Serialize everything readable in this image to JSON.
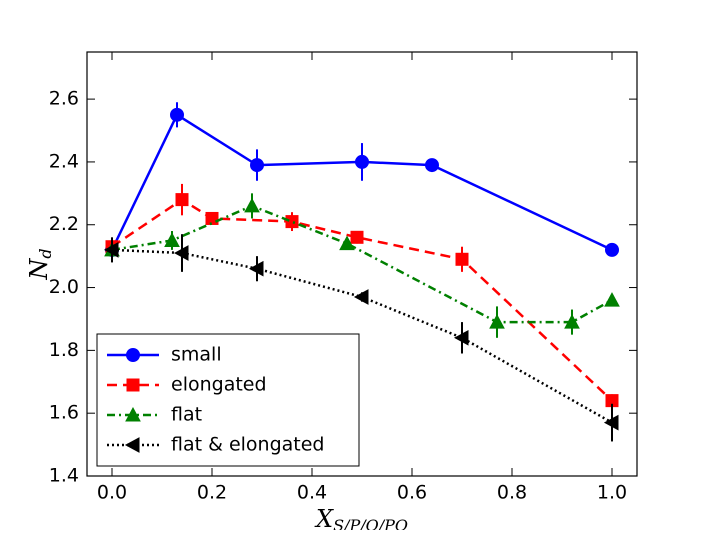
{
  "chart_data": {
    "type": "line",
    "xlabel": {
      "main": "X",
      "sub": "S/P/O/PO"
    },
    "ylabel": {
      "main": "N",
      "sub": "d"
    },
    "xlim": [
      -0.05,
      1.05
    ],
    "ylim": [
      1.4,
      2.75
    ],
    "xticks": [
      {
        "value": 0,
        "label": "0.0"
      },
      {
        "value": 0.2,
        "label": "0.2"
      },
      {
        "value": 0.4,
        "label": "0.4"
      },
      {
        "value": 0.6,
        "label": "0.6"
      },
      {
        "value": 0.8,
        "label": "0.8"
      },
      {
        "value": 1,
        "label": "1.0"
      }
    ],
    "yticks": [
      1.4,
      1.6,
      1.8,
      {
        "value": 2,
        "label": "2.0"
      },
      2.2,
      2.4,
      2.6
    ],
    "legend": "lower left",
    "series": [
      {
        "name": "small",
        "color": "#0000ff",
        "linestyle": "solid",
        "marker": "circle",
        "x": [
          0,
          0.13,
          0.29,
          0.5,
          0.64,
          1.0
        ],
        "values": [
          2.12,
          2.55,
          2.39,
          2.4,
          2.39,
          2.12
        ],
        "errors": [
          0.02,
          0.04,
          0.05,
          0.06,
          0.015,
          0.01
        ]
      },
      {
        "name": "elongated",
        "color": "#ff0000",
        "linestyle": "dashed",
        "marker": "square",
        "x": [
          0,
          0.14,
          0.2,
          0.36,
          0.49,
          0.7,
          1.0
        ],
        "values": [
          2.13,
          2.28,
          2.22,
          2.21,
          2.16,
          2.09,
          1.64
        ],
        "errors": [
          0.02,
          0.05,
          0.01,
          0.03,
          0.02,
          0.04,
          0.02
        ]
      },
      {
        "name": "flat",
        "color": "#008000",
        "linestyle": "dashdot",
        "marker": "triangle-up",
        "x": [
          0,
          0.12,
          0.28,
          0.47,
          0.77,
          0.92,
          1.0
        ],
        "values": [
          2.12,
          2.15,
          2.26,
          2.14,
          1.89,
          1.89,
          1.96
        ],
        "errors": [
          0.02,
          0.03,
          0.04,
          0.02,
          0.05,
          0.04,
          0.01
        ]
      },
      {
        "name": "flat & elongated",
        "color": "#000000",
        "linestyle": "dotted",
        "marker": "triangle-left",
        "x": [
          0,
          0.14,
          0.29,
          0.5,
          0.7,
          1.0
        ],
        "values": [
          2.12,
          2.11,
          2.06,
          1.97,
          1.84,
          1.57
        ],
        "errors": [
          0.04,
          0.06,
          0.04,
          0.015,
          0.05,
          0.06
        ]
      }
    ]
  }
}
